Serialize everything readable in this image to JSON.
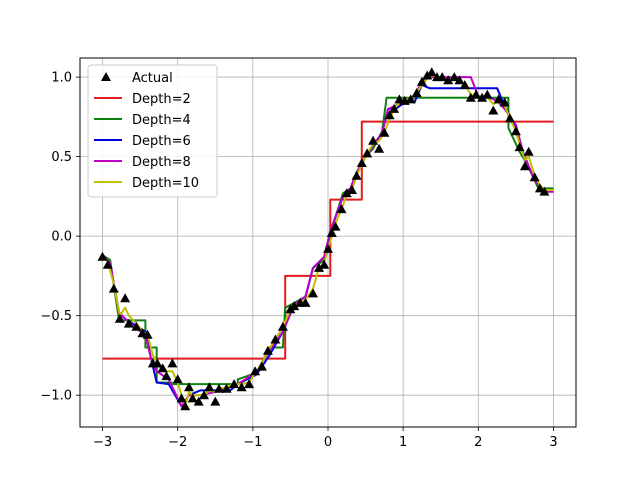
{
  "chart_data": {
    "type": "line",
    "title": "",
    "xlabel": "",
    "ylabel": "",
    "xlim": [
      -3.3,
      3.3
    ],
    "ylim": [
      -1.2,
      1.12
    ],
    "xticks": [
      -3,
      -2,
      -1,
      0,
      1,
      2,
      3
    ],
    "xtick_labels": [
      "−3",
      "−2",
      "−1",
      "0",
      "1",
      "2",
      "3"
    ],
    "yticks": [
      -1.0,
      -0.5,
      0.0,
      0.5,
      1.0
    ],
    "ytick_labels": [
      "−1.0",
      "−0.5",
      "0.0",
      "0.5",
      "1.0"
    ],
    "grid": true,
    "legend_position": "upper-left",
    "scatter": {
      "name": "Actual",
      "marker": "triangle",
      "color": "#000000",
      "points": [
        [
          -3.0,
          -0.13
        ],
        [
          -2.93,
          -0.18
        ],
        [
          -2.85,
          -0.33
        ],
        [
          -2.77,
          -0.52
        ],
        [
          -2.7,
          -0.39
        ],
        [
          -2.65,
          -0.55
        ],
        [
          -2.55,
          -0.57
        ],
        [
          -2.47,
          -0.61
        ],
        [
          -2.4,
          -0.62
        ],
        [
          -2.33,
          -0.8
        ],
        [
          -2.27,
          -0.8
        ],
        [
          -2.2,
          -0.83
        ],
        [
          -2.15,
          -0.88
        ],
        [
          -2.07,
          -0.8
        ],
        [
          -2.0,
          -0.9
        ],
        [
          -1.95,
          -1.02
        ],
        [
          -1.9,
          -1.07
        ],
        [
          -1.85,
          -0.95
        ],
        [
          -1.8,
          -1.02
        ],
        [
          -1.72,
          -1.04
        ],
        [
          -1.65,
          -1.0
        ],
        [
          -1.58,
          -0.95
        ],
        [
          -1.5,
          -1.04
        ],
        [
          -1.45,
          -0.96
        ],
        [
          -1.35,
          -0.96
        ],
        [
          -1.25,
          -0.93
        ],
        [
          -1.15,
          -0.95
        ],
        [
          -1.05,
          -0.93
        ],
        [
          -0.97,
          -0.85
        ],
        [
          -0.88,
          -0.82
        ],
        [
          -0.8,
          -0.72
        ],
        [
          -0.7,
          -0.65
        ],
        [
          -0.6,
          -0.57
        ],
        [
          -0.5,
          -0.46
        ],
        [
          -0.45,
          -0.44
        ],
        [
          -0.37,
          -0.42
        ],
        [
          -0.3,
          -0.42
        ],
        [
          -0.2,
          -0.36
        ],
        [
          -0.12,
          -0.2
        ],
        [
          -0.05,
          -0.18
        ],
        [
          0.0,
          -0.08
        ],
        [
          0.05,
          0.02
        ],
        [
          0.1,
          0.06
        ],
        [
          0.18,
          0.17
        ],
        [
          0.25,
          0.27
        ],
        [
          0.32,
          0.29
        ],
        [
          0.38,
          0.38
        ],
        [
          0.45,
          0.46
        ],
        [
          0.52,
          0.52
        ],
        [
          0.6,
          0.6
        ],
        [
          0.68,
          0.55
        ],
        [
          0.75,
          0.65
        ],
        [
          0.82,
          0.76
        ],
        [
          0.88,
          0.8
        ],
        [
          0.95,
          0.86
        ],
        [
          1.02,
          0.85
        ],
        [
          1.1,
          0.86
        ],
        [
          1.18,
          0.9
        ],
        [
          1.25,
          0.97
        ],
        [
          1.32,
          1.01
        ],
        [
          1.38,
          1.03
        ],
        [
          1.45,
          1.0
        ],
        [
          1.52,
          1.0
        ],
        [
          1.6,
          0.98
        ],
        [
          1.68,
          1.0
        ],
        [
          1.75,
          0.98
        ],
        [
          1.82,
          0.95
        ],
        [
          1.9,
          0.87
        ],
        [
          1.97,
          0.89
        ],
        [
          2.05,
          0.87
        ],
        [
          2.12,
          0.89
        ],
        [
          2.2,
          0.79
        ],
        [
          2.27,
          0.86
        ],
        [
          2.35,
          0.84
        ],
        [
          2.42,
          0.74
        ],
        [
          2.5,
          0.66
        ],
        [
          2.55,
          0.56
        ],
        [
          2.62,
          0.44
        ],
        [
          2.67,
          0.53
        ],
        [
          2.75,
          0.37
        ],
        [
          2.82,
          0.3
        ],
        [
          2.88,
          0.28
        ]
      ]
    },
    "series": [
      {
        "name": "Depth=2",
        "color": "#e41a1c",
        "x": [
          -3.0,
          -0.57,
          -0.57,
          0.03,
          0.03,
          0.45,
          0.45,
          0.55,
          0.55,
          3.0
        ],
        "y": [
          -0.77,
          -0.77,
          -0.25,
          -0.25,
          0.23,
          0.23,
          0.72,
          0.72,
          0.72,
          0.72
        ]
      },
      {
        "name": "Depth=4",
        "color": "#108010",
        "x": [
          -3.0,
          -2.9,
          -2.78,
          -2.78,
          -2.43,
          -2.43,
          -2.28,
          -2.28,
          -2.08,
          -2.08,
          -1.2,
          -1.2,
          -0.95,
          -0.78,
          -0.6,
          -0.57,
          -0.45,
          -0.3,
          -0.2,
          -0.05,
          0.03,
          0.2,
          0.3,
          0.38,
          0.5,
          0.6,
          0.72,
          0.78,
          0.78,
          1.45,
          1.45,
          2.4,
          2.4,
          2.55,
          2.65,
          2.8,
          3.0
        ],
        "y": [
          -0.12,
          -0.15,
          -0.53,
          -0.53,
          -0.53,
          -0.7,
          -0.7,
          -0.92,
          -0.92,
          -0.93,
          -0.93,
          -0.9,
          -0.86,
          -0.7,
          -0.7,
          -0.45,
          -0.42,
          -0.38,
          -0.2,
          -0.15,
          0.02,
          0.27,
          0.3,
          0.4,
          0.5,
          0.55,
          0.66,
          0.87,
          0.87,
          0.87,
          0.87,
          0.87,
          0.68,
          0.53,
          0.45,
          0.3,
          0.3
        ]
      },
      {
        "name": "Depth=6",
        "color": "#0000e0",
        "x": [
          -3.0,
          -2.9,
          -2.78,
          -2.7,
          -2.43,
          -2.35,
          -2.28,
          -2.12,
          -1.95,
          -1.85,
          -1.7,
          -1.3,
          -1.2,
          -0.95,
          -0.78,
          -0.6,
          -0.45,
          -0.3,
          -0.2,
          -0.05,
          0.03,
          0.2,
          0.3,
          0.38,
          0.5,
          0.6,
          0.72,
          0.8,
          0.9,
          1.05,
          1.15,
          1.25,
          1.35,
          2.25,
          2.35,
          2.5,
          2.6,
          2.75,
          2.9,
          3.0
        ],
        "y": [
          -0.12,
          -0.17,
          -0.48,
          -0.52,
          -0.6,
          -0.78,
          -0.92,
          -0.93,
          -1.07,
          -1.0,
          -0.97,
          -0.97,
          -0.93,
          -0.87,
          -0.75,
          -0.6,
          -0.43,
          -0.38,
          -0.2,
          -0.13,
          0.03,
          0.25,
          0.3,
          0.4,
          0.5,
          0.57,
          0.65,
          0.8,
          0.8,
          0.85,
          0.84,
          0.95,
          0.93,
          0.93,
          0.82,
          0.68,
          0.52,
          0.35,
          0.28,
          0.28
        ]
      },
      {
        "name": "Depth=8",
        "color": "#c000c0",
        "x": [
          -3.0,
          -2.9,
          -2.78,
          -2.7,
          -2.55,
          -2.43,
          -2.35,
          -2.28,
          -2.12,
          -1.95,
          -1.85,
          -1.7,
          -1.5,
          -1.3,
          -1.2,
          -1.1,
          -0.95,
          -0.78,
          -0.6,
          -0.45,
          -0.3,
          -0.2,
          -0.05,
          0.03,
          0.2,
          0.3,
          0.38,
          0.5,
          0.6,
          0.72,
          0.8,
          0.9,
          1.05,
          1.15,
          1.25,
          1.35,
          1.9,
          2.0,
          2.1,
          2.25,
          2.35,
          2.5,
          2.6,
          2.75,
          2.9,
          3.0
        ],
        "y": [
          -0.12,
          -0.17,
          -0.48,
          -0.52,
          -0.58,
          -0.62,
          -0.78,
          -0.85,
          -0.9,
          -1.07,
          -1.0,
          -1.0,
          -0.98,
          -0.95,
          -0.93,
          -0.9,
          -0.85,
          -0.72,
          -0.6,
          -0.43,
          -0.38,
          -0.2,
          -0.13,
          0.03,
          0.25,
          0.3,
          0.4,
          0.5,
          0.57,
          0.65,
          0.8,
          0.82,
          0.86,
          0.88,
          0.97,
          1.0,
          1.0,
          0.88,
          0.88,
          0.85,
          0.8,
          0.7,
          0.52,
          0.35,
          0.28,
          0.28
        ]
      },
      {
        "name": "Depth=10",
        "color": "#bfbf00",
        "x": [
          -3.0,
          -2.93,
          -2.85,
          -2.77,
          -2.7,
          -2.65,
          -2.55,
          -2.47,
          -2.4,
          -2.33,
          -2.27,
          -2.2,
          -2.15,
          -2.07,
          -2.0,
          -1.95,
          -1.9,
          -1.85,
          -1.8,
          -1.72,
          -1.65,
          -1.58,
          -1.5,
          -1.45,
          -1.35,
          -1.25,
          -1.15,
          -1.05,
          -0.97,
          -0.88,
          -0.8,
          -0.7,
          -0.6,
          -0.5,
          -0.45,
          -0.37,
          -0.3,
          -0.2,
          -0.12,
          -0.05,
          0.0,
          0.05,
          0.1,
          0.18,
          0.25,
          0.32,
          0.38,
          0.45,
          0.52,
          0.6,
          0.68,
          0.75,
          0.82,
          0.88,
          0.95,
          1.02,
          1.1,
          1.18,
          1.25,
          1.32,
          1.38,
          1.45,
          1.52,
          1.6,
          1.68,
          1.75,
          1.82,
          1.9,
          1.97,
          2.05,
          2.12,
          2.2,
          2.27,
          2.35,
          2.42,
          2.5,
          2.55,
          2.62,
          2.67,
          2.75,
          2.82,
          2.88,
          3.0
        ],
        "y": [
          -0.13,
          -0.16,
          -0.3,
          -0.5,
          -0.45,
          -0.5,
          -0.55,
          -0.6,
          -0.62,
          -0.75,
          -0.8,
          -0.85,
          -0.85,
          -0.85,
          -0.92,
          -1.0,
          -1.07,
          -0.98,
          -1.0,
          -1.0,
          -1.0,
          -0.97,
          -0.98,
          -0.96,
          -0.95,
          -0.93,
          -0.93,
          -0.92,
          -0.86,
          -0.8,
          -0.72,
          -0.65,
          -0.57,
          -0.46,
          -0.44,
          -0.42,
          -0.4,
          -0.33,
          -0.2,
          -0.17,
          -0.08,
          0.0,
          0.08,
          0.17,
          0.26,
          0.29,
          0.38,
          0.45,
          0.52,
          0.58,
          0.6,
          0.65,
          0.74,
          0.8,
          0.84,
          0.85,
          0.87,
          0.9,
          0.95,
          0.99,
          1.01,
          1.0,
          1.0,
          0.98,
          0.99,
          0.97,
          0.95,
          0.89,
          0.88,
          0.88,
          0.87,
          0.83,
          0.85,
          0.82,
          0.74,
          0.66,
          0.58,
          0.48,
          0.5,
          0.38,
          0.32,
          0.29,
          0.29
        ]
      }
    ]
  }
}
